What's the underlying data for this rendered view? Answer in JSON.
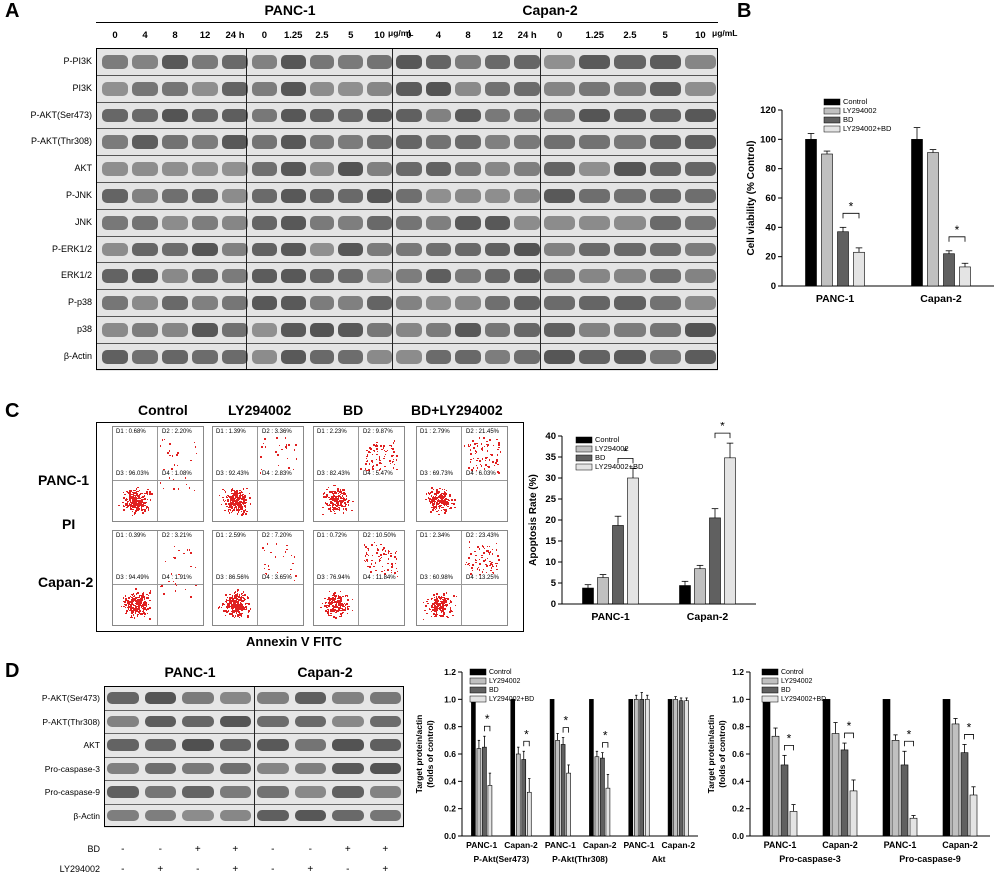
{
  "panel_letters": [
    "A",
    "B",
    "C",
    "D"
  ],
  "panelA": {
    "cell_lines": [
      "PANC-1",
      "Capan-2"
    ],
    "time_doses": [
      "0",
      "4",
      "8",
      "12",
      "24 h"
    ],
    "conc_doses": [
      "0",
      "1.25",
      "2.5",
      "5",
      "10"
    ],
    "conc_unit": "μg/mL",
    "blots": [
      "P-PI3K",
      "PI3K",
      "P-AKT(Ser473)",
      "P-AKT(Thr308)",
      "AKT",
      "P-JNK",
      "JNK",
      "P-ERK1/2",
      "ERK1/2",
      "P-p38",
      "p38",
      "β-Actin"
    ]
  },
  "panelC": {
    "conditions": [
      "Control",
      "LY294002",
      "BD",
      "BD+LY294002"
    ],
    "rows": [
      "PANC-1",
      "PI",
      "Capan-2"
    ],
    "xaxis": "Annexin V FITC",
    "quadrants": [
      [
        [
          "D1 : 0.68%",
          "D2 : 2.20%",
          "D3 : 96.03%",
          "D4 : 1.08%"
        ],
        [
          "D1 : 1.39%",
          "D2 : 3.36%",
          "D3 : 92.43%",
          "D4 : 2.83%"
        ],
        [
          "D1 : 2.23%",
          "D2 : 9.87%",
          "D3 : 82.43%",
          "D4 : 5.47%"
        ],
        [
          "D1 : 2.79%",
          "D2 : 21.45%",
          "D3 : 69.73%",
          "D4 : 6.03%"
        ]
      ],
      [
        [
          "D1 : 0.39%",
          "D2 : 3.21%",
          "D3 : 94.49%",
          "D4 : 1.91%"
        ],
        [
          "D1 : 2.59%",
          "D2 : 7.20%",
          "D3 : 86.56%",
          "D4 : 3.65%"
        ],
        [
          "D1 : 0.72%",
          "D2 : 10.50%",
          "D3 : 76.94%",
          "D4 : 11.84%"
        ],
        [
          "D1 : 2.34%",
          "D2 : 23.43%",
          "D3 : 60.98%",
          "D4 : 13.25%"
        ]
      ]
    ]
  },
  "panelD": {
    "cell_lines": [
      "PANC-1",
      "Capan-2"
    ],
    "blots": [
      "P-AKT(Ser473)",
      "P-AKT(Thr308)",
      "AKT",
      "Pro-caspase-3",
      "Pro-caspase-9",
      "β-Actin"
    ],
    "bd_label": "BD",
    "ly_label": "LY294002",
    "bd_signs": [
      "-",
      "-",
      "+",
      "+",
      "-",
      "-",
      "+",
      "+"
    ],
    "ly_signs": [
      "-",
      "+",
      "-",
      "+",
      "-",
      "+",
      "-",
      "+"
    ]
  },
  "colors": {
    "Control": "#000000",
    "LY294002": "#c0c0c0",
    "BD": "#606060",
    "LY294002+BD": "#e4e4e4"
  },
  "chart_data": [
    {
      "id": "B",
      "type": "bar",
      "ylabel": "Cell viability (% Control)",
      "ylim": [
        0,
        120
      ],
      "yticks": [
        0,
        20,
        40,
        60,
        80,
        100,
        120
      ],
      "categories": [
        "PANC-1",
        "Capan-2"
      ],
      "series": [
        {
          "name": "Control",
          "values": [
            100,
            100
          ],
          "errors": [
            4,
            8
          ]
        },
        {
          "name": "LY294002",
          "values": [
            90,
            91
          ],
          "errors": [
            2,
            2
          ]
        },
        {
          "name": "BD",
          "values": [
            37,
            22
          ],
          "errors": [
            3,
            2
          ]
        },
        {
          "name": "LY294002+BD",
          "values": [
            23,
            13
          ],
          "errors": [
            3,
            2.5
          ]
        }
      ],
      "annotations": [
        "*",
        "*"
      ],
      "legend": "top"
    },
    {
      "id": "C",
      "type": "bar",
      "ylabel": "Apoptosis Rate (%)",
      "ylim": [
        0,
        40
      ],
      "yticks": [
        0,
        5,
        10,
        15,
        20,
        25,
        30,
        35,
        40
      ],
      "categories": [
        "PANC-1",
        "Capan-2"
      ],
      "series": [
        {
          "name": "Control",
          "values": [
            3.8,
            4.4
          ],
          "errors": [
            0.8,
            1.0
          ]
        },
        {
          "name": "LY294002",
          "values": [
            6.3,
            8.4
          ],
          "errors": [
            0.7,
            0.8
          ]
        },
        {
          "name": "BD",
          "values": [
            18.7,
            20.5
          ],
          "errors": [
            2.2,
            2.2
          ]
        },
        {
          "name": "LY294002+BD",
          "values": [
            30,
            34.8
          ],
          "errors": [
            2.3,
            3.5
          ]
        }
      ],
      "annotations": [
        "*",
        "*"
      ],
      "legend": "top-left"
    },
    {
      "id": "D1",
      "type": "bar",
      "ylabel": "Target protein/actin (folds of control)",
      "ylim": [
        0,
        1.2
      ],
      "yticks": [
        0.0,
        0.2,
        0.4,
        0.6,
        0.8,
        1.0,
        1.2
      ],
      "categories": [
        "PANC-1",
        "Capan-2",
        "PANC-1",
        "Capan-2",
        "PANC-1",
        "Capan-2"
      ],
      "groups": [
        "P-Akt(Ser473)",
        "P-Akt(Thr308)",
        "Akt"
      ],
      "series": [
        {
          "name": "Control",
          "values": [
            1.0,
            1.0,
            1.0,
            1.0,
            1.0,
            1.0
          ],
          "errors": [
            0,
            0,
            0,
            0,
            0,
            0
          ]
        },
        {
          "name": "LY294002",
          "values": [
            0.64,
            0.6,
            0.7,
            0.58,
            1.0,
            1.0
          ],
          "errors": [
            0.06,
            0.05,
            0.05,
            0.04,
            0.03,
            0.02
          ]
        },
        {
          "name": "BD",
          "values": [
            0.65,
            0.56,
            0.67,
            0.57,
            1.0,
            0.99
          ],
          "errors": [
            0.08,
            0.06,
            0.05,
            0.04,
            0.05,
            0.02
          ]
        },
        {
          "name": "LY294002+BD",
          "values": [
            0.37,
            0.32,
            0.46,
            0.35,
            1.0,
            0.99
          ],
          "errors": [
            0.09,
            0.1,
            0.06,
            0.1,
            0.03,
            0.02
          ]
        }
      ],
      "annotations": [
        "*",
        "*",
        "*",
        "*"
      ],
      "legend": "top-left"
    },
    {
      "id": "D2",
      "type": "bar",
      "ylabel": "Target protein/actin (folds of control)",
      "ylim": [
        0,
        1.2
      ],
      "yticks": [
        0.0,
        0.2,
        0.4,
        0.6,
        0.8,
        1.0,
        1.2
      ],
      "categories": [
        "PANC-1",
        "Capan-2",
        "PANC-1",
        "Capan-2"
      ],
      "groups": [
        "Pro-caspase-3",
        "Pro-caspase-9"
      ],
      "series": [
        {
          "name": "Control",
          "values": [
            1.0,
            1.0,
            1.0,
            1.0
          ],
          "errors": [
            0,
            0,
            0,
            0
          ]
        },
        {
          "name": "LY294002",
          "values": [
            0.73,
            0.75,
            0.7,
            0.82
          ],
          "errors": [
            0.06,
            0.08,
            0.04,
            0.04
          ]
        },
        {
          "name": "BD",
          "values": [
            0.52,
            0.63,
            0.52,
            0.61
          ],
          "errors": [
            0.07,
            0.05,
            0.1,
            0.06
          ]
        },
        {
          "name": "LY294002+BD",
          "values": [
            0.18,
            0.33,
            0.13,
            0.3
          ],
          "errors": [
            0.05,
            0.08,
            0.02,
            0.06
          ]
        }
      ],
      "annotations": [
        "*",
        "*",
        "*",
        "*"
      ],
      "legend": "top-left"
    }
  ]
}
